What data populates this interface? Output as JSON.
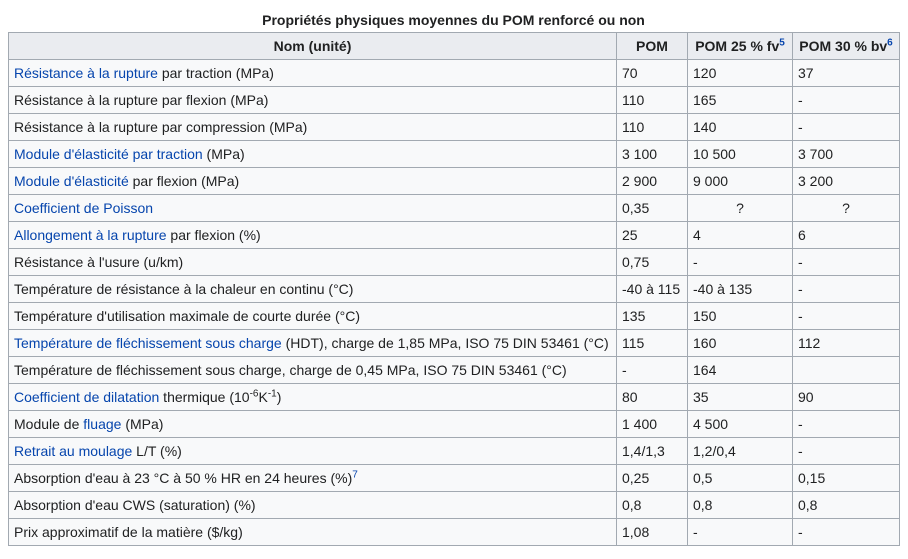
{
  "caption": "Propriétés physiques moyennes du POM renforcé ou non",
  "headers": {
    "name": "Nom (unité)",
    "pom": "POM",
    "fv": "POM 25 % fv",
    "fv_ref": "5",
    "bv": "POM 30 % bv",
    "bv_ref": "6"
  },
  "rows": [
    {
      "parts": [
        {
          "t": "Résistance à la rupture",
          "link": true
        },
        {
          "t": " par traction (MPa)"
        }
      ],
      "pom": "70",
      "fv": "120",
      "bv": "37"
    },
    {
      "parts": [
        {
          "t": "Résistance à la rupture par flexion (MPa)"
        }
      ],
      "pom": "110",
      "fv": "165",
      "bv": "-"
    },
    {
      "parts": [
        {
          "t": "Résistance à la rupture par compression (MPa)"
        }
      ],
      "pom": "110",
      "fv": "140",
      "bv": "-"
    },
    {
      "parts": [
        {
          "t": "Module d'élasticité par traction",
          "link": true
        },
        {
          "t": " (MPa)"
        }
      ],
      "pom": "3 100",
      "fv": "10 500",
      "bv": "3 700"
    },
    {
      "parts": [
        {
          "t": "Module d'élasticité",
          "link": true
        },
        {
          "t": " par flexion (MPa)"
        }
      ],
      "pom": "2 900",
      "fv": "9 000",
      "bv": "3 200"
    },
    {
      "parts": [
        {
          "t": "Coefficient de Poisson",
          "link": true
        }
      ],
      "pom": "0,35",
      "fv": "?",
      "bv": "?",
      "center_fv": true,
      "center_bv": true
    },
    {
      "parts": [
        {
          "t": "Allongement à la rupture",
          "link": true
        },
        {
          "t": " par flexion (%)"
        }
      ],
      "pom": "25",
      "fv": "4",
      "bv": "6"
    },
    {
      "parts": [
        {
          "t": "Résistance à l'usure (u/km)"
        }
      ],
      "pom": "0,75",
      "fv": "-",
      "bv": "-"
    },
    {
      "parts": [
        {
          "t": "Température de résistance à la chaleur en continu (°C)"
        }
      ],
      "pom": "-40 à 115",
      "fv": "-40 à 135",
      "bv": "-"
    },
    {
      "parts": [
        {
          "t": "Température d'utilisation maximale de courte durée (°C)"
        }
      ],
      "pom": "135",
      "fv": "150",
      "bv": "-"
    },
    {
      "parts": [
        {
          "t": "Température de fléchissement sous charge",
          "link": true
        },
        {
          "t": " (HDT), charge de 1,85 MPa, ISO 75 DIN 53461 (°C)"
        }
      ],
      "pom": "115",
      "fv": "160",
      "bv": "112"
    },
    {
      "parts": [
        {
          "t": "Température de fléchissement sous charge, charge de 0,45 MPa, ISO 75 DIN 53461 (°C)"
        }
      ],
      "pom": "-",
      "fv": "164",
      "bv": ""
    },
    {
      "parts": [
        {
          "t": "Coefficient de dilatation",
          "link": true
        },
        {
          "t": " thermique (10"
        },
        {
          "t": "-6",
          "sup": true
        },
        {
          "t": "K"
        },
        {
          "t": "-1",
          "sup": true
        },
        {
          "t": ")"
        }
      ],
      "pom": "80",
      "fv": "35",
      "bv": "90"
    },
    {
      "parts": [
        {
          "t": "Module de "
        },
        {
          "t": "fluage",
          "link": true
        },
        {
          "t": " (MPa)"
        }
      ],
      "pom": "1 400",
      "fv": "4 500",
      "bv": "-"
    },
    {
      "parts": [
        {
          "t": "Retrait au moulage",
          "link": true
        },
        {
          "t": " L/T (%)"
        }
      ],
      "pom": "1,4/1,3",
      "fv": "1,2/0,4",
      "bv": "-"
    },
    {
      "parts": [
        {
          "t": "Absorption d'eau à 23 °C à 50 % HR en 24 heures (%)"
        },
        {
          "t": "7",
          "sup": true,
          "ref": true
        }
      ],
      "pom": "0,25",
      "fv": "0,5",
      "bv": "0,15"
    },
    {
      "parts": [
        {
          "t": "Absorption d'eau CWS (saturation) (%)"
        }
      ],
      "pom": "0,8",
      "fv": "0,8",
      "bv": "0,8"
    },
    {
      "parts": [
        {
          "t": "Prix approximatif de la matière ($/kg)"
        }
      ],
      "pom": "1,08",
      "fv": "-",
      "bv": "-"
    }
  ]
}
